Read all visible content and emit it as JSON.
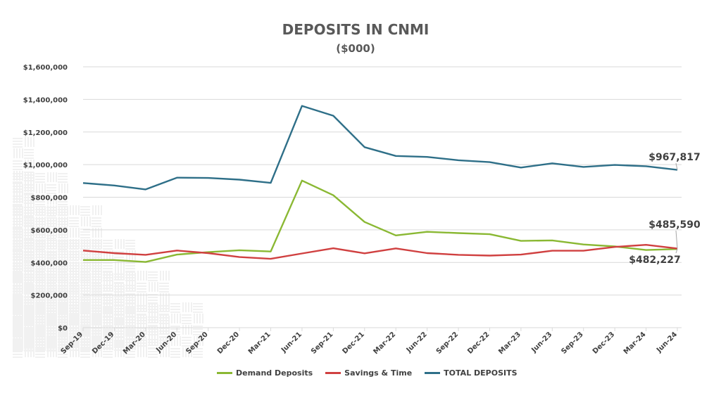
{
  "chart_data": {
    "type": "line",
    "title": "DEPOSITS IN CNMI",
    "subtitle": "($000)",
    "categories": [
      "Sep-19",
      "Dec-19",
      "Mar-20",
      "Jun-20",
      "Sep-20",
      "Dec-20",
      "Mar-21",
      "Jun-21",
      "Sep-21",
      "Dec-21",
      "Mar-22",
      "Jun-22",
      "Sep-22",
      "Dec-22",
      "Mar-23",
      "Jun-23",
      "Sep-23",
      "Dec-23",
      "Mar-24",
      "Jun-24"
    ],
    "series": [
      {
        "name": "Demand Deposits",
        "color": "#8ab833",
        "values": [
          415000,
          415000,
          403000,
          448000,
          463000,
          475000,
          467000,
          902000,
          812000,
          648000,
          566000,
          588000,
          580000,
          573000,
          532000,
          535000,
          510000,
          498000,
          476000,
          482227
        ]
      },
      {
        "name": "Savings & Time",
        "color": "#d04040",
        "values": [
          473000,
          457000,
          447000,
          473000,
          457000,
          433000,
          422000,
          455000,
          487000,
          456000,
          486000,
          457000,
          447000,
          442000,
          448000,
          472000,
          472000,
          495000,
          508000,
          485590
        ]
      },
      {
        "name": "TOTAL DEPOSITS",
        "color": "#2e6f88",
        "values": [
          887000,
          872000,
          848000,
          920000,
          918000,
          908000,
          888000,
          1360000,
          1300000,
          1107000,
          1053000,
          1047000,
          1027000,
          1015000,
          982000,
          1008000,
          986000,
          998000,
          990000,
          967817
        ]
      }
    ],
    "ylim": [
      0,
      1600000
    ],
    "yticks": [
      0,
      200000,
      400000,
      600000,
      800000,
      1000000,
      1200000,
      1400000,
      1600000
    ],
    "ytick_labels": [
      "$0",
      "$200,000",
      "$400,000",
      "$600,000",
      "$800,000",
      "$1,000,000",
      "$1,200,000",
      "$1,400,000",
      "$1,600,000"
    ],
    "grid": true,
    "legend_position": "bottom",
    "annotations": [
      {
        "series": "TOTAL DEPOSITS",
        "point": "Jun-24",
        "text": "$967,817"
      },
      {
        "series": "Savings & Time",
        "point": "Jun-24",
        "text": "$485,590"
      },
      {
        "series": "Demand Deposits",
        "point": "Jun-24",
        "text": "$482,227"
      }
    ]
  }
}
